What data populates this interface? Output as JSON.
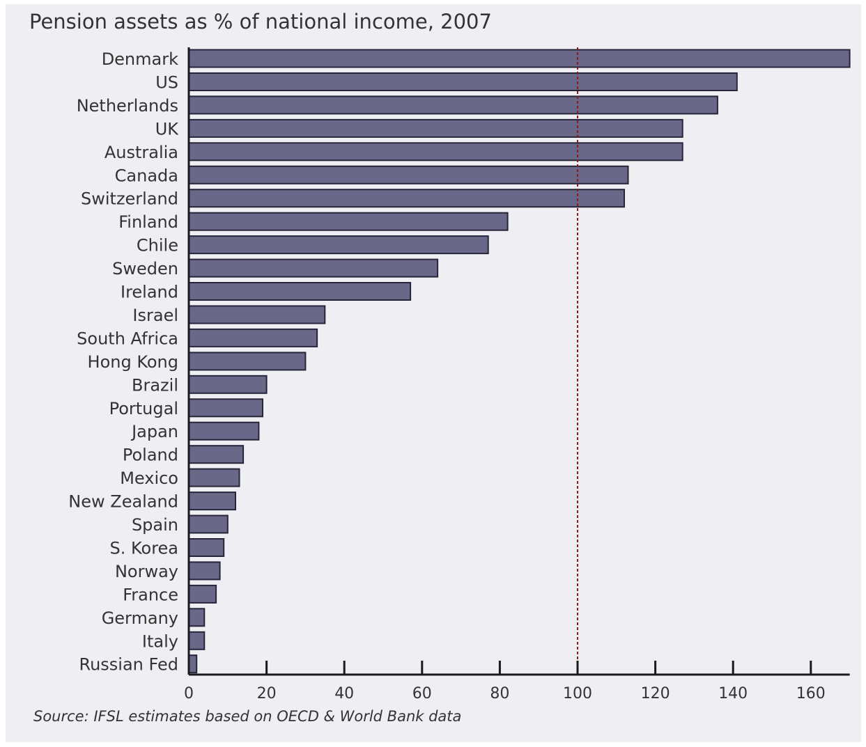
{
  "chart_data": {
    "type": "bar",
    "orientation": "horizontal",
    "title": "Pension assets as % of national income, 2007",
    "source": "Source: IFSL estimates based on OECD & World Bank data",
    "categories": [
      "Denmark",
      "US",
      "Netherlands",
      "UK",
      "Australia",
      "Canada",
      "Switzerland",
      "Finland",
      "Chile",
      "Sweden",
      "Ireland",
      "Israel",
      "South Africa",
      "Hong Kong",
      "Brazil",
      "Portugal",
      "Japan",
      "Poland",
      "Mexico",
      "New Zealand",
      "Spain",
      "S. Korea",
      "Norway",
      "France",
      "Germany",
      "Italy",
      "Russian Fed"
    ],
    "values": [
      170,
      141,
      136,
      127,
      127,
      113,
      112,
      82,
      77,
      64,
      57,
      35,
      33,
      30,
      20,
      19,
      18,
      14,
      13,
      12,
      10,
      9,
      8,
      7,
      4,
      4,
      2
    ],
    "xlabel": "",
    "ylabel": "",
    "xlim": [
      0,
      170
    ],
    "xticks": [
      0,
      20,
      40,
      60,
      80,
      100,
      120,
      140,
      160
    ],
    "reference_line": 100,
    "grid": false,
    "colors": {
      "bar_fill": "#6a6888",
      "bar_stroke": "#26253a",
      "reference_line": "#8b1a1a",
      "axis": "#1a1a1a",
      "text": "#333333",
      "panel_background": "#efeef3"
    }
  }
}
